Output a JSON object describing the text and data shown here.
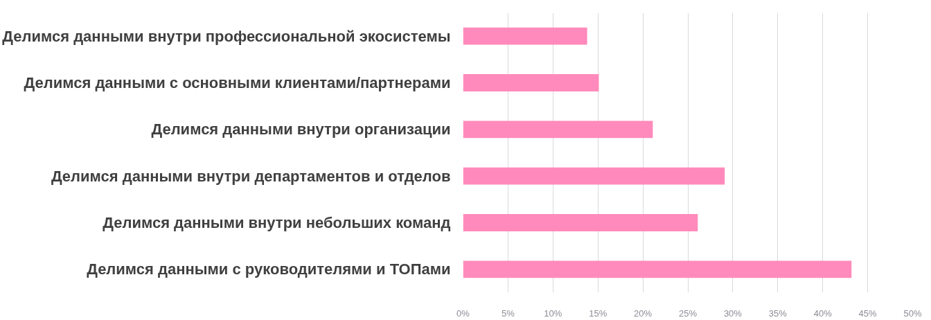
{
  "chart_data": {
    "type": "bar",
    "orientation": "horizontal",
    "categories": [
      "Делимся данными внутри профессиональной экосистемы",
      "Делимся данными с основными клиентами/партнерами",
      "Делимся данными внутри организации",
      "Делимся данными внутри департаментов и отделов",
      "Делимся данными внутри небольших команд",
      "Делимся данными с руководителями и ТОПами"
    ],
    "values": [
      13.8,
      15.1,
      21.1,
      29.1,
      26.1,
      43.2
    ],
    "color": "#ff8abb",
    "xlim": [
      0,
      50
    ],
    "xticks": [
      {
        "value": 0,
        "label": "0%"
      },
      {
        "value": 5,
        "label": "5%"
      },
      {
        "value": 10,
        "label": "10%"
      },
      {
        "value": 15,
        "label": "15%"
      },
      {
        "value": 20,
        "label": "20%"
      },
      {
        "value": 25,
        "label": "25%"
      },
      {
        "value": 30,
        "label": "30%"
      },
      {
        "value": 35,
        "label": "35%"
      },
      {
        "value": 40,
        "label": "40%"
      },
      {
        "value": 45,
        "label": "45%"
      },
      {
        "value": 50,
        "label": "50%"
      }
    ],
    "grid": "x"
  }
}
